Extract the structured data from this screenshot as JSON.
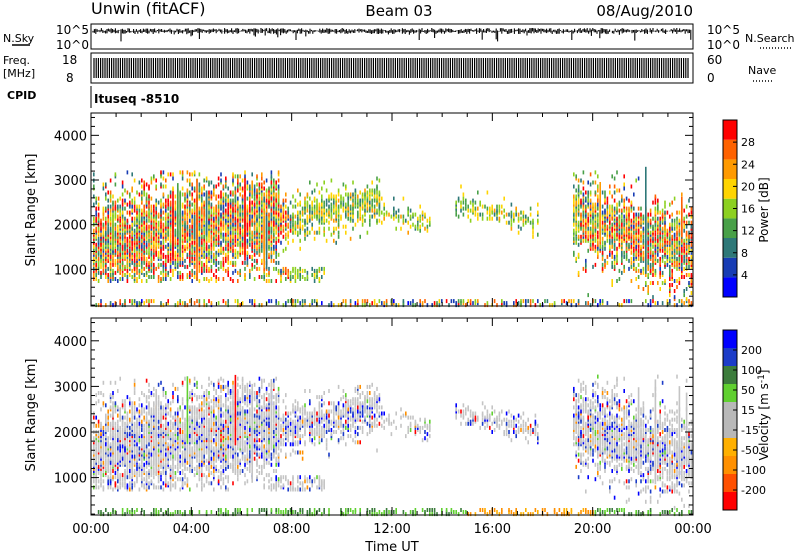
{
  "header": {
    "station": "Unwin (fitACF)",
    "beam": "Beam 03",
    "date": "08/Aug/2010"
  },
  "noise_panel": {
    "left_label": "N.Sky",
    "right_label": "N.Search",
    "ytick_top": "10^5",
    "ytick_bottom": "10^0"
  },
  "freq_panel": {
    "left_label_line1": "Freq.",
    "left_label_line2": "[MHz]",
    "right_label": "Nave",
    "left_ticks": [
      "18",
      "8"
    ],
    "right_ticks": [
      "60",
      "0"
    ]
  },
  "cpid": {
    "label": "CPID",
    "value": "Ituseq -8510"
  },
  "colors": {
    "power": [
      "#0000ff",
      "#173cb4",
      "#2e7878",
      "#48a048",
      "#8cd020",
      "#ffd400",
      "#ff9a00",
      "#ff6200",
      "#ff0000"
    ],
    "velocity": [
      "#ff0000",
      "#ff5000",
      "#ff9000",
      "#ffb000",
      "#b8b8b8",
      "#b8b8b8",
      "#60d030",
      "#3c7c3c",
      "#1c3cc8",
      "#0000ff"
    ]
  },
  "chart_data": [
    {
      "type": "heatmap",
      "name": "power",
      "xlabel": "",
      "ylabel": "Slant Range [km]",
      "x_range_hours": [
        0,
        24
      ],
      "ylim_km": [
        180,
        4500
      ],
      "yticks": [
        "1000",
        "2000",
        "3000",
        "4000"
      ],
      "colorbar_label": "Power [dB]",
      "colorbar_ticks": [
        "4",
        "8",
        "12",
        "16",
        "20",
        "24",
        "28"
      ]
    },
    {
      "type": "heatmap",
      "name": "velocity",
      "xlabel": "Time UT",
      "ylabel": "Slant Range [km]",
      "x_range_hours": [
        0,
        24
      ],
      "ylim_km": [
        180,
        4500
      ],
      "xticks": [
        "00:00",
        "04:00",
        "08:00",
        "12:00",
        "16:00",
        "20:00",
        "00:00"
      ],
      "yticks": [
        "1000",
        "2000",
        "3000",
        "4000"
      ],
      "colorbar_label": "Velocity [m s⁻¹]",
      "colorbar_ticks": [
        "200",
        "100",
        "50",
        "15",
        "-15",
        "-50",
        "-100",
        "-200"
      ]
    }
  ]
}
